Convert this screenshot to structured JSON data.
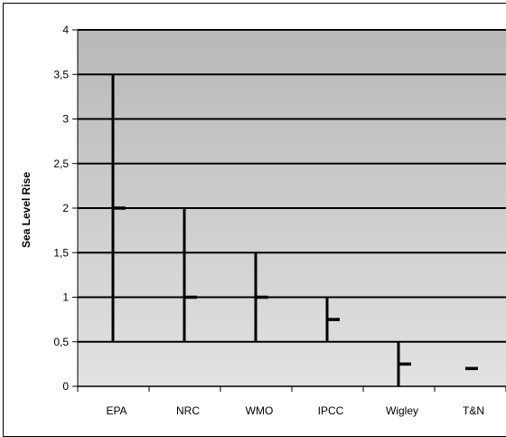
{
  "chart_data": {
    "type": "range",
    "ylabel": "Sea Level Rise",
    "xlabel": "",
    "ylim": [
      0,
      4
    ],
    "yticks": [
      "0",
      "0,5",
      "1",
      "1,5",
      "2",
      "2,5",
      "3",
      "3,5",
      "4"
    ],
    "grid": true,
    "categories": [
      "EPA",
      "NRC",
      "WMO",
      "IPCC",
      "Wigley",
      "T&N"
    ],
    "ranges": [
      {
        "low": 0.5,
        "high": 3.5,
        "mid": 2.0
      },
      {
        "low": 0.5,
        "high": 2.0,
        "mid": 1.0
      },
      {
        "low": 0.5,
        "high": 1.5,
        "mid": 1.0
      },
      {
        "low": 0.5,
        "high": 1.0,
        "mid": 0.75
      },
      {
        "low": 0.0,
        "high": 0.5,
        "mid": 0.25
      },
      {
        "low": 0.2,
        "high": 0.2,
        "mid": 0.2
      }
    ],
    "colors": {
      "plot_background": "#c0c0c0",
      "mark": "#000000"
    }
  }
}
